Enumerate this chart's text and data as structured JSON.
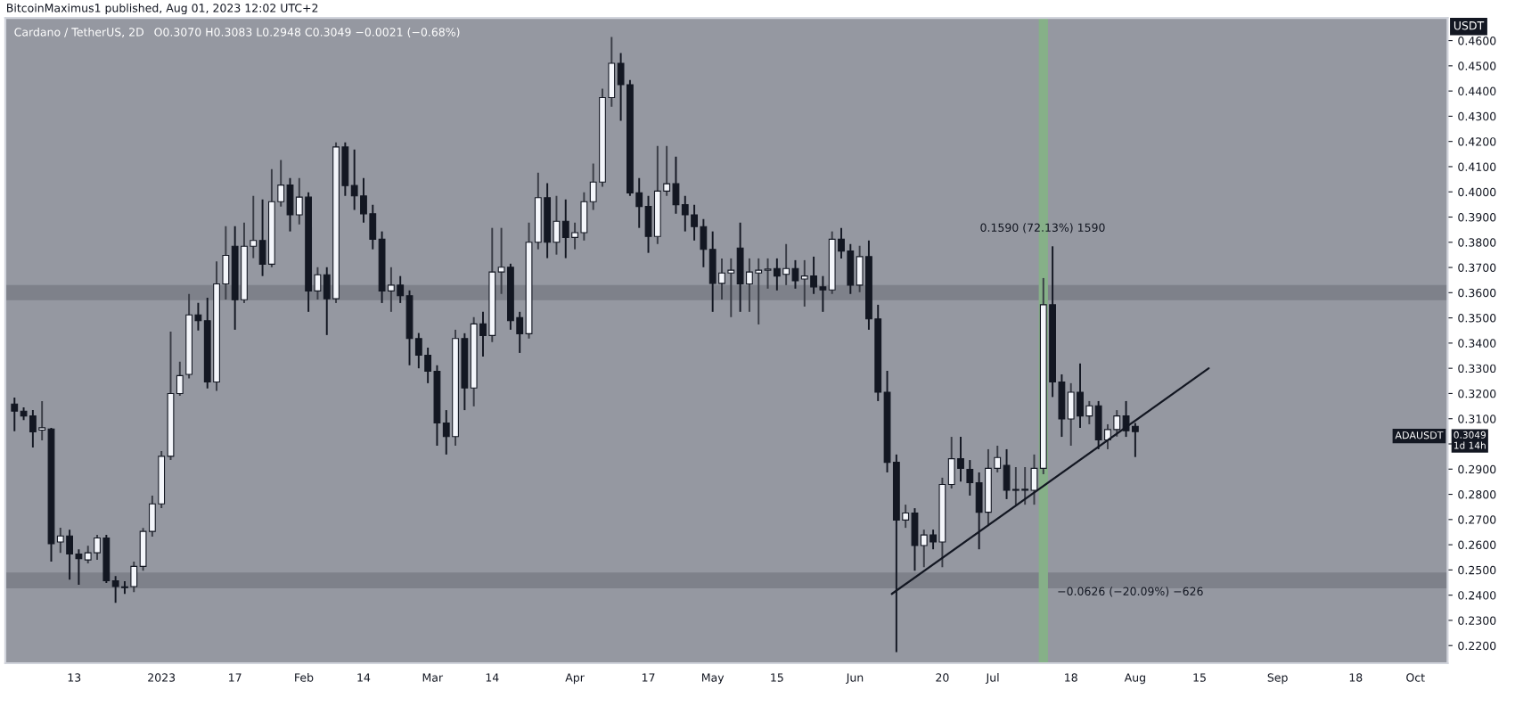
{
  "chart_data": {
    "type": "candlestick",
    "title": "Cardano / TetherUS, 2D",
    "subtitle": "O0.3070 H0.3083 L0.2948 C0.3049 −0.0021 (−0.68%)",
    "ylabel": "USDT",
    "x": [
      "2022-11-30",
      "2022-12-02",
      "2022-12-04",
      "2022-12-06",
      "2022-12-08",
      "2022-12-10",
      "2022-12-12",
      "2022-12-14",
      "2022-12-16",
      "2022-12-18",
      "2022-12-20",
      "2022-12-22",
      "2022-12-24",
      "2022-12-26",
      "2022-12-28",
      "2022-12-30",
      "2023-01-01",
      "2023-01-03",
      "2023-01-05",
      "2023-01-07",
      "2023-01-09",
      "2023-01-11",
      "2023-01-13",
      "2023-01-15",
      "2023-01-17",
      "2023-01-19",
      "2023-01-21",
      "2023-01-23",
      "2023-01-25",
      "2023-01-27",
      "2023-01-29",
      "2023-01-31",
      "2023-02-02",
      "2023-02-04",
      "2023-02-06",
      "2023-02-08",
      "2023-02-10",
      "2023-02-12",
      "2023-02-14",
      "2023-02-16",
      "2023-02-18",
      "2023-02-20",
      "2023-02-22",
      "2023-02-24",
      "2023-02-26",
      "2023-02-28",
      "2023-03-02",
      "2023-03-04",
      "2023-03-06",
      "2023-03-08",
      "2023-03-10",
      "2023-03-12",
      "2023-03-14",
      "2023-03-16",
      "2023-03-18",
      "2023-03-20",
      "2023-03-22",
      "2023-03-24",
      "2023-03-26",
      "2023-03-28",
      "2023-03-30",
      "2023-04-01",
      "2023-04-03",
      "2023-04-05",
      "2023-04-07",
      "2023-04-09",
      "2023-04-11",
      "2023-04-13",
      "2023-04-15",
      "2023-04-17",
      "2023-04-19",
      "2023-04-21",
      "2023-04-23",
      "2023-04-25",
      "2023-04-27",
      "2023-04-29",
      "2023-05-01",
      "2023-05-03",
      "2023-05-05",
      "2023-05-07",
      "2023-05-09",
      "2023-05-11",
      "2023-05-13",
      "2023-05-15",
      "2023-05-17",
      "2023-05-19",
      "2023-05-21",
      "2023-05-23",
      "2023-05-25",
      "2023-05-27",
      "2023-05-29",
      "2023-05-31",
      "2023-06-02",
      "2023-06-04",
      "2023-06-06",
      "2023-06-08",
      "2023-06-10",
      "2023-06-12",
      "2023-06-14",
      "2023-06-16",
      "2023-06-18",
      "2023-06-20",
      "2023-06-22",
      "2023-06-24",
      "2023-06-26",
      "2023-06-28",
      "2023-06-30",
      "2023-07-02",
      "2023-07-04",
      "2023-07-06",
      "2023-07-08",
      "2023-07-10",
      "2023-07-12",
      "2023-07-14",
      "2023-07-16",
      "2023-07-18",
      "2023-07-20",
      "2023-07-22",
      "2023-07-24",
      "2023-07-26",
      "2023-07-28",
      "2023-07-30",
      "2023-08-01"
    ],
    "ohlc": [
      [
        0.3158,
        0.3184,
        0.305,
        0.313
      ],
      [
        0.313,
        0.3145,
        0.3095,
        0.3111
      ],
      [
        0.3111,
        0.3134,
        0.2986,
        0.3048
      ],
      [
        0.3055,
        0.317,
        0.3014,
        0.3064
      ],
      [
        0.3059,
        0.3064,
        0.2533,
        0.2604
      ],
      [
        0.2611,
        0.2668,
        0.2568,
        0.2635
      ],
      [
        0.2635,
        0.266,
        0.2462,
        0.2563
      ],
      [
        0.2563,
        0.2582,
        0.2441,
        0.2545
      ],
      [
        0.254,
        0.2596,
        0.2526,
        0.2568
      ],
      [
        0.2568,
        0.2639,
        0.254,
        0.2627
      ],
      [
        0.2627,
        0.2639,
        0.2448,
        0.2457
      ],
      [
        0.2457,
        0.2476,
        0.237,
        0.2434
      ],
      [
        0.2433,
        0.2455,
        0.2405,
        0.243
      ],
      [
        0.2434,
        0.2533,
        0.2412,
        0.2514
      ],
      [
        0.2514,
        0.2667,
        0.2497,
        0.2653
      ],
      [
        0.2653,
        0.2795,
        0.2632,
        0.2762
      ],
      [
        0.2762,
        0.2972,
        0.2745,
        0.2951
      ],
      [
        0.2951,
        0.3446,
        0.2936,
        0.32
      ],
      [
        0.32,
        0.3326,
        0.3191,
        0.3271
      ],
      [
        0.3276,
        0.3595,
        0.326,
        0.3512
      ],
      [
        0.3512,
        0.356,
        0.345,
        0.3489
      ],
      [
        0.3489,
        0.358,
        0.322,
        0.3246
      ],
      [
        0.3246,
        0.3724,
        0.321,
        0.3635
      ],
      [
        0.3635,
        0.3864,
        0.3573,
        0.3748
      ],
      [
        0.3784,
        0.3864,
        0.3453,
        0.3572
      ],
      [
        0.3572,
        0.3878,
        0.3559,
        0.3784
      ],
      [
        0.3784,
        0.3984,
        0.3737,
        0.3807
      ],
      [
        0.3807,
        0.397,
        0.3666,
        0.3713
      ],
      [
        0.3713,
        0.409,
        0.3701,
        0.3961
      ],
      [
        0.3961,
        0.4126,
        0.3942,
        0.4027
      ],
      [
        0.4027,
        0.4055,
        0.3843,
        0.3909
      ],
      [
        0.3909,
        0.4055,
        0.3871,
        0.3979
      ],
      [
        0.3979,
        0.3998,
        0.3524,
        0.3607
      ],
      [
        0.3607,
        0.3701,
        0.3573,
        0.3671
      ],
      [
        0.3671,
        0.3701,
        0.3432,
        0.3576
      ],
      [
        0.3576,
        0.4196,
        0.3559,
        0.4178
      ],
      [
        0.4178,
        0.4196,
        0.3984,
        0.4025
      ],
      [
        0.4025,
        0.4168,
        0.3928,
        0.3984
      ],
      [
        0.3984,
        0.4055,
        0.3878,
        0.3913
      ],
      [
        0.3913,
        0.3949,
        0.3772,
        0.3812
      ],
      [
        0.3812,
        0.3843,
        0.3559,
        0.3607
      ],
      [
        0.3607,
        0.3701,
        0.3524,
        0.363
      ],
      [
        0.363,
        0.3666,
        0.3559,
        0.3588
      ],
      [
        0.3588,
        0.3609,
        0.3312,
        0.3418
      ],
      [
        0.3418,
        0.344,
        0.33,
        0.3352
      ],
      [
        0.3352,
        0.3382,
        0.3241,
        0.3288
      ],
      [
        0.3288,
        0.3312,
        0.2993,
        0.3083
      ],
      [
        0.3083,
        0.3134,
        0.2958,
        0.3029
      ],
      [
        0.3029,
        0.3453,
        0.2993,
        0.3418
      ],
      [
        0.3418,
        0.3439,
        0.3134,
        0.3222
      ],
      [
        0.3222,
        0.3503,
        0.3149,
        0.3476
      ],
      [
        0.3476,
        0.3524,
        0.3347,
        0.343
      ],
      [
        0.343,
        0.3857,
        0.3404,
        0.3682
      ],
      [
        0.3682,
        0.3857,
        0.3595,
        0.3701
      ],
      [
        0.3701,
        0.3715,
        0.3453,
        0.3489
      ],
      [
        0.3501,
        0.3524,
        0.3361,
        0.3437
      ],
      [
        0.3437,
        0.3878,
        0.3418,
        0.38
      ],
      [
        0.38,
        0.4076,
        0.3772,
        0.3977
      ],
      [
        0.3977,
        0.4034,
        0.3737,
        0.38
      ],
      [
        0.38,
        0.3984,
        0.3751,
        0.3883
      ],
      [
        0.3883,
        0.397,
        0.3737,
        0.3819
      ],
      [
        0.3819,
        0.3878,
        0.3772,
        0.3838
      ],
      [
        0.3838,
        0.3998,
        0.3807,
        0.3961
      ],
      [
        0.3961,
        0.4112,
        0.3928,
        0.4039
      ],
      [
        0.4039,
        0.4409,
        0.402,
        0.4374
      ],
      [
        0.4374,
        0.4614,
        0.4338,
        0.451
      ],
      [
        0.451,
        0.4551,
        0.4282,
        0.4425
      ],
      [
        0.4425,
        0.4444,
        0.3984,
        0.3996
      ],
      [
        0.3996,
        0.4055,
        0.3857,
        0.3942
      ],
      [
        0.3942,
        0.3984,
        0.3758,
        0.3823
      ],
      [
        0.3823,
        0.4182,
        0.3793,
        0.4003
      ],
      [
        0.4003,
        0.4182,
        0.3984,
        0.4032
      ],
      [
        0.4032,
        0.414,
        0.3913,
        0.3949
      ],
      [
        0.3949,
        0.3984,
        0.3843,
        0.3909
      ],
      [
        0.3909,
        0.3949,
        0.3807,
        0.3862
      ],
      [
        0.3862,
        0.3892,
        0.3701,
        0.3772
      ],
      [
        0.3772,
        0.3843,
        0.3524,
        0.3637
      ],
      [
        0.3637,
        0.3736,
        0.3573,
        0.3678
      ],
      [
        0.3678,
        0.3736,
        0.3503,
        0.3689
      ],
      [
        0.3777,
        0.3878,
        0.3524,
        0.3635
      ],
      [
        0.3635,
        0.3736,
        0.3524,
        0.3682
      ],
      [
        0.3678,
        0.3736,
        0.3474,
        0.3689
      ],
      [
        0.3689,
        0.3736,
        0.3616,
        0.3694
      ],
      [
        0.3696,
        0.3736,
        0.3609,
        0.3666
      ],
      [
        0.3673,
        0.3793,
        0.363,
        0.3696
      ],
      [
        0.3696,
        0.3729,
        0.3616,
        0.3647
      ],
      [
        0.3654,
        0.3729,
        0.3545,
        0.3666
      ],
      [
        0.3666,
        0.3743,
        0.3595,
        0.3623
      ],
      [
        0.3623,
        0.3666,
        0.3524,
        0.3611
      ],
      [
        0.3611,
        0.3843,
        0.3595,
        0.3812
      ],
      [
        0.3812,
        0.3857,
        0.3736,
        0.3765
      ],
      [
        0.3765,
        0.3793,
        0.3595,
        0.363
      ],
      [
        0.363,
        0.3786,
        0.3602,
        0.3743
      ],
      [
        0.3743,
        0.3807,
        0.3453,
        0.3496
      ],
      [
        0.3496,
        0.3552,
        0.317,
        0.3205
      ],
      [
        0.3205,
        0.329,
        0.2887,
        0.2927
      ],
      [
        0.2927,
        0.2958,
        0.2174,
        0.2698
      ],
      [
        0.2698,
        0.2759,
        0.2667,
        0.2726
      ],
      [
        0.2726,
        0.2745,
        0.2497,
        0.2597
      ],
      [
        0.2597,
        0.266,
        0.2511,
        0.2639
      ],
      [
        0.2639,
        0.266,
        0.2582,
        0.2611
      ],
      [
        0.2611,
        0.2866,
        0.2511,
        0.2839
      ],
      [
        0.2839,
        0.3028,
        0.2823,
        0.2941
      ],
      [
        0.2941,
        0.3028,
        0.2851,
        0.2903
      ],
      [
        0.2899,
        0.2936,
        0.2795,
        0.2846
      ],
      [
        0.2846,
        0.2887,
        0.2582,
        0.2729
      ],
      [
        0.2729,
        0.2979,
        0.2674,
        0.2903
      ],
      [
        0.2903,
        0.2993,
        0.2887,
        0.2946
      ],
      [
        0.2915,
        0.2979,
        0.2781,
        0.2816
      ],
      [
        0.2816,
        0.2908,
        0.2759,
        0.2816
      ],
      [
        0.2816,
        0.2908,
        0.2759,
        0.282
      ],
      [
        0.2816,
        0.2958,
        0.2759,
        0.2903
      ],
      [
        0.2903,
        0.3658,
        0.288,
        0.3552
      ],
      [
        0.3552,
        0.3784,
        0.3186,
        0.3246
      ],
      [
        0.3246,
        0.3276,
        0.3028,
        0.3099
      ],
      [
        0.3099,
        0.3241,
        0.2993,
        0.3205
      ],
      [
        0.3205,
        0.3319,
        0.3064,
        0.3111
      ],
      [
        0.3111,
        0.317,
        0.3078,
        0.3151
      ],
      [
        0.3151,
        0.317,
        0.2979,
        0.3016
      ],
      [
        0.3016,
        0.3078,
        0.2979,
        0.3057
      ],
      [
        0.3057,
        0.3134,
        0.3029,
        0.3111
      ],
      [
        0.3111,
        0.317,
        0.3028,
        0.3052
      ],
      [
        0.307,
        0.3083,
        0.2948,
        0.3049
      ]
    ],
    "series": [
      {
        "type": "line",
        "x": [
          "2023-06-09",
          "2023-08-17"
        ],
        "values": [
          0.2405,
          0.33
        ],
        "color": "#131722"
      }
    ],
    "xlim": [
      "2022-11-28",
      "2023-10-08"
    ],
    "xticks": [
      {
        "value": "2022-12-13",
        "label": "13"
      },
      {
        "value": "2023-01-01",
        "label": "2023"
      },
      {
        "value": "2023-01-17",
        "label": "17"
      },
      {
        "value": "2023-02-01",
        "label": "Feb"
      },
      {
        "value": "2023-02-14",
        "label": "14"
      },
      {
        "value": "2023-03-01",
        "label": "Mar"
      },
      {
        "value": "2023-03-14",
        "label": "14"
      },
      {
        "value": "2023-04-01",
        "label": "Apr"
      },
      {
        "value": "2023-04-17",
        "label": "17"
      },
      {
        "value": "2023-05-01",
        "label": "May"
      },
      {
        "value": "2023-05-15",
        "label": "15"
      },
      {
        "value": "2023-06-01",
        "label": "Jun"
      },
      {
        "value": "2023-06-20",
        "label": "20"
      },
      {
        "value": "2023-07-01",
        "label": "Jul"
      },
      {
        "value": "2023-07-18",
        "label": "18"
      },
      {
        "value": "2023-08-01",
        "label": "Aug"
      },
      {
        "value": "2023-08-15",
        "label": "15"
      },
      {
        "value": "2023-09-01",
        "label": "Sep"
      },
      {
        "value": "2023-09-18",
        "label": "18"
      },
      {
        "value": "2023-10-01",
        "label": "Oct"
      }
    ],
    "ylim": [
      0.213,
      0.469
    ],
    "yticks": [
      {
        "value": 0.22,
        "label": "0.2200"
      },
      {
        "value": 0.23,
        "label": "0.2300"
      },
      {
        "value": 0.24,
        "label": "0.2400"
      },
      {
        "value": 0.25,
        "label": "0.2500"
      },
      {
        "value": 0.26,
        "label": "0.2600"
      },
      {
        "value": 0.27,
        "label": "0.2700"
      },
      {
        "value": 0.28,
        "label": "0.2800"
      },
      {
        "value": 0.29,
        "label": "0.2900"
      },
      {
        "value": 0.3,
        "label": null
      },
      {
        "value": 0.31,
        "label": "0.3100"
      },
      {
        "value": 0.32,
        "label": "0.3200"
      },
      {
        "value": 0.33,
        "label": "0.3300"
      },
      {
        "value": 0.34,
        "label": "0.3400"
      },
      {
        "value": 0.35,
        "label": "0.3500"
      },
      {
        "value": 0.36,
        "label": "0.3600"
      },
      {
        "value": 0.37,
        "label": "0.3700"
      },
      {
        "value": 0.38,
        "label": "0.3800"
      },
      {
        "value": 0.39,
        "label": "0.3900"
      },
      {
        "value": 0.4,
        "label": "0.4000"
      },
      {
        "value": 0.41,
        "label": "0.4100"
      },
      {
        "value": 0.42,
        "label": "0.4200"
      },
      {
        "value": 0.43,
        "label": "0.4300"
      },
      {
        "value": 0.44,
        "label": "0.4400"
      },
      {
        "value": 0.45,
        "label": "0.4500"
      },
      {
        "value": 0.46,
        "label": "0.4600"
      }
    ],
    "bands": [
      {
        "axis": "y",
        "from": 0.357,
        "to": 0.363,
        "color": "#7e818a"
      },
      {
        "axis": "y",
        "from": 0.2427,
        "to": 0.249,
        "color": "#7e818a"
      },
      {
        "axis": "x",
        "from": "2023-07-11",
        "to": "2023-07-13",
        "color": "#86b088"
      }
    ],
    "annotations": [
      "BitcoinMaximus1 published, Aug 01, 2023 12:02 UTC+2",
      {
        "text": "0.1590 (72.13%) 1590",
        "x": "2023-07-14",
        "y": 0.3784
      },
      "−0.0626 (−20.09%) −626",
      "ADAUSDT",
      "0.3049\n1d 14h"
    ]
  }
}
